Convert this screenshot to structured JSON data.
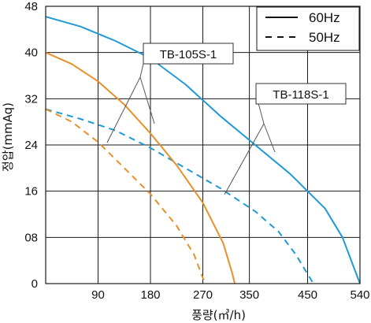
{
  "chart_data": {
    "type": "line",
    "xlabel": "풍량(㎥/h)",
    "ylabel": "정압(mmAq)",
    "x_ticks": [
      "90",
      "180",
      "270",
      "350",
      "450",
      "540"
    ],
    "y_ticks": [
      "0",
      "08",
      "16",
      "24",
      "32",
      "40",
      "48"
    ],
    "xlim": [
      0,
      540
    ],
    "ylim": [
      0,
      48
    ],
    "grid": true,
    "legend_position": "top-right",
    "legend": [
      {
        "label": "60Hz",
        "line_style": "solid"
      },
      {
        "label": "50Hz",
        "line_style": "dashed"
      }
    ],
    "callouts": [
      {
        "text": "TB-105S-1"
      },
      {
        "text": "TB-118S-1"
      }
    ],
    "series": [
      {
        "model": "TB-118S-1",
        "frequency": "60Hz",
        "style": "solid",
        "color": "#1f9ad6",
        "points": [
          [
            0,
            46.2
          ],
          [
            60,
            44.5
          ],
          [
            120,
            42.0
          ],
          [
            180,
            39.0
          ],
          [
            240,
            34.5
          ],
          [
            300,
            29.0
          ],
          [
            360,
            24.0
          ],
          [
            420,
            19.0
          ],
          [
            480,
            13.0
          ],
          [
            510,
            8.0
          ],
          [
            540,
            0
          ]
        ]
      },
      {
        "model": "TB-118S-1",
        "frequency": "50Hz",
        "style": "dashed",
        "color": "#1f9ad6",
        "points": [
          [
            0,
            30.2
          ],
          [
            60,
            28.5
          ],
          [
            120,
            26.5
          ],
          [
            180,
            23.5
          ],
          [
            240,
            20.0
          ],
          [
            300,
            16.5
          ],
          [
            360,
            12.5
          ],
          [
            400,
            9.0
          ],
          [
            430,
            5.0
          ],
          [
            460,
            0
          ]
        ]
      },
      {
        "model": "TB-105S-1",
        "frequency": "60Hz",
        "style": "solid",
        "color": "#e8902a",
        "points": [
          [
            0,
            40.0
          ],
          [
            45,
            38.0
          ],
          [
            90,
            35.0
          ],
          [
            135,
            31.0
          ],
          [
            180,
            26.0
          ],
          [
            225,
            20.5
          ],
          [
            270,
            14.0
          ],
          [
            305,
            7.0
          ],
          [
            320,
            2.0
          ],
          [
            325,
            0
          ]
        ]
      },
      {
        "model": "TB-105S-1",
        "frequency": "50Hz",
        "style": "dashed",
        "color": "#e8902a",
        "points": [
          [
            0,
            30.2
          ],
          [
            45,
            28.0
          ],
          [
            90,
            24.5
          ],
          [
            135,
            20.0
          ],
          [
            180,
            15.5
          ],
          [
            225,
            10.0
          ],
          [
            255,
            5.0
          ],
          [
            270,
            1.0
          ],
          [
            275,
            0
          ]
        ]
      }
    ]
  }
}
